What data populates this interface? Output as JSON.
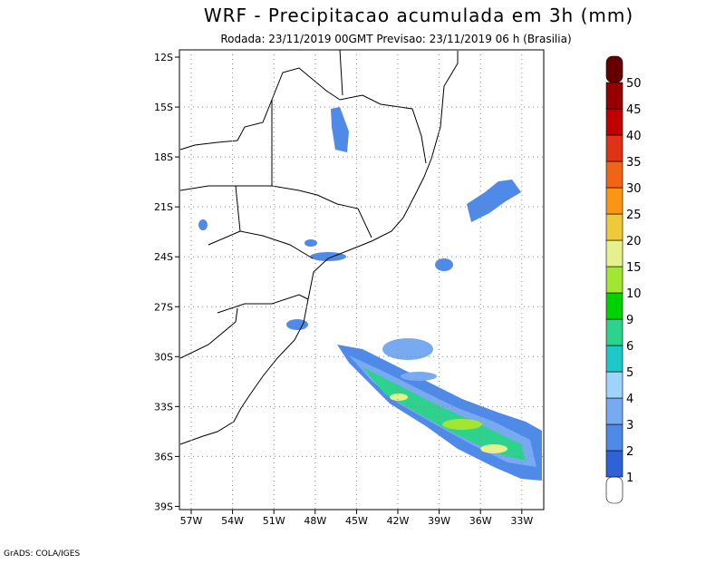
{
  "header": {
    "title": "WRF - Precipitacao acumulada em 3h (mm)",
    "subtitle": "Rodada: 23/11/2019 00GMT Previsao: 23/11/2019 06 h (Brasilia)"
  },
  "map": {
    "lat_labels": [
      "12S",
      "15S",
      "18S",
      "21S",
      "24S",
      "27S",
      "30S",
      "33S",
      "36S",
      "39S"
    ],
    "lon_labels": [
      "57W",
      "54W",
      "51W",
      "48W",
      "45W",
      "42W",
      "39W",
      "36W",
      "33W"
    ]
  },
  "colorbar": {
    "labels": [
      "1",
      "2",
      "3",
      "4",
      "5",
      "6",
      "9",
      "10",
      "15",
      "20",
      "25",
      "30",
      "35",
      "40",
      "45",
      "50"
    ],
    "colors": [
      "#ffffff",
      "#2f62d4",
      "#4f8ae8",
      "#78aaf2",
      "#9ed4fa",
      "#1ec8c8",
      "#2dd28c",
      "#00d200",
      "#a0e632",
      "#e6f08c",
      "#f0c83c",
      "#fa9614",
      "#f06414",
      "#e03214",
      "#c00000",
      "#960000",
      "#640000"
    ]
  },
  "footer": "GrADS: COLA/IGES"
}
